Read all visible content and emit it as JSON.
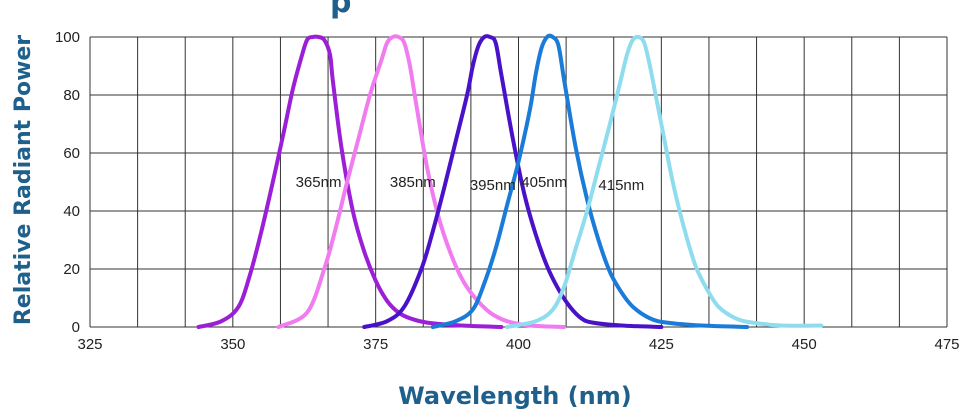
{
  "chart_data": {
    "type": "line",
    "title_fragment": "p",
    "xlabel": "Wavelength (nm)",
    "ylabel": "Relative Radiant Power",
    "xlim": [
      325,
      475
    ],
    "ylim": [
      0,
      100
    ],
    "x_ticks": [
      "325",
      "350",
      "375",
      "400",
      "425",
      "450",
      "475"
    ],
    "y_ticks": [
      "0",
      "20",
      "40",
      "60",
      "80",
      "100"
    ],
    "grid": true,
    "series": [
      {
        "name": "365nm",
        "color": "#9b1fd6",
        "x": [
          344,
          348,
          351,
          353,
          355,
          357,
          359,
          360.5,
          362,
          363,
          364,
          365,
          366,
          367,
          367.5,
          369,
          371,
          373,
          375,
          377,
          379,
          381,
          384,
          390,
          397
        ],
        "y": [
          0,
          2,
          7,
          18,
          33,
          50,
          68,
          82,
          93,
          99,
          100,
          100,
          99,
          94,
          85,
          62,
          40,
          26,
          16,
          9,
          5,
          3,
          1.5,
          0.5,
          0
        ]
      },
      {
        "name": "385nm",
        "color": "#f07cf0",
        "x": [
          358,
          363,
          366,
          368,
          370,
          372,
          374,
          376,
          377,
          378,
          379,
          380,
          381,
          382,
          384,
          386,
          388,
          390,
          392,
          395,
          398,
          402,
          408
        ],
        "y": [
          0,
          5,
          20,
          34,
          50,
          65,
          80,
          92,
          98,
          100,
          100,
          98,
          90,
          78,
          55,
          38,
          26,
          17,
          11,
          5,
          2,
          0.5,
          0
        ]
      },
      {
        "name": "395nm",
        "color": "#4a12c8",
        "x": [
          373,
          377,
          380,
          383,
          385,
          387,
          389,
          391,
          392,
          393,
          394,
          395,
          396,
          397,
          399,
          401,
          403,
          405,
          407,
          409,
          411,
          413,
          418,
          425
        ],
        "y": [
          0,
          2,
          7,
          20,
          33,
          48,
          64,
          80,
          90,
          97,
          100,
          100,
          98,
          87,
          65,
          46,
          32,
          21,
          13,
          7,
          3,
          1.5,
          0.5,
          0
        ]
      },
      {
        "name": "405nm",
        "color": "#1a7bd8",
        "x": [
          385,
          389,
          392,
          394,
          396,
          398,
          400,
          402,
          403,
          404,
          405,
          406,
          407,
          408,
          410,
          412,
          414,
          416,
          418,
          420,
          423,
          426,
          432,
          440
        ],
        "y": [
          0,
          2,
          6,
          15,
          27,
          42,
          57,
          75,
          87,
          96,
          100,
          100,
          97,
          85,
          62,
          44,
          30,
          19,
          12,
          7,
          3,
          1.5,
          0.5,
          0
        ]
      },
      {
        "name": "415nm",
        "color": "#8fdcef",
        "x": [
          398,
          403,
          406,
          408,
          410,
          412,
          414,
          416,
          418,
          419,
          420,
          421,
          422,
          423,
          425,
          427,
          429,
          431,
          433,
          435,
          438,
          441,
          446,
          453
        ],
        "y": [
          0,
          2,
          6,
          14,
          27,
          40,
          55,
          70,
          86,
          94,
          99,
          100,
          98,
          90,
          70,
          50,
          34,
          21,
          13,
          7,
          3,
          1.5,
          0.5,
          0.5
        ]
      }
    ],
    "annotations": [
      {
        "text": "365nm",
        "x": 365,
        "y": 50
      },
      {
        "text": "385nm",
        "x": 381.5,
        "y": 50
      },
      {
        "text": "395nm",
        "x": 395.5,
        "y": 49
      },
      {
        "text": "405nm",
        "x": 404.5,
        "y": 50
      },
      {
        "text": "415nm",
        "x": 418,
        "y": 49
      }
    ]
  }
}
